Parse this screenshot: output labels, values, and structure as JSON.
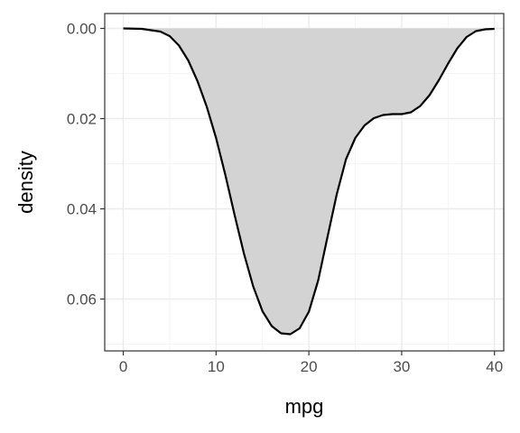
{
  "chart_data": {
    "type": "area",
    "xlabel": "mpg",
    "ylabel": "density",
    "xlim": [
      -2,
      41
    ],
    "ylim": [
      -0.0033,
      0.0715
    ],
    "y_reversed": true,
    "x_ticks": [
      0,
      10,
      20,
      30,
      40
    ],
    "x_tick_labels": [
      "0",
      "10",
      "20",
      "30",
      "40"
    ],
    "y_ticks": [
      0.0,
      0.02,
      0.04,
      0.06
    ],
    "y_tick_labels": [
      "0.00",
      "0.02",
      "0.04",
      "0.06"
    ],
    "grid": true,
    "fill_color": "#d3d3d3",
    "line_color": "#000000",
    "series": [
      {
        "x": [
          0,
          2,
          4,
          5,
          6,
          7,
          8,
          9,
          10,
          11,
          12,
          13,
          14,
          15,
          16,
          17,
          18,
          19,
          20,
          21,
          22,
          23,
          24,
          25,
          26,
          27,
          28,
          29,
          30,
          31,
          32,
          33,
          34,
          35,
          36,
          37,
          38,
          39,
          40
        ],
        "y": [
          0.0,
          0.0001,
          0.0007,
          0.0017,
          0.0038,
          0.0071,
          0.0117,
          0.0174,
          0.0243,
          0.0325,
          0.0414,
          0.0499,
          0.0572,
          0.0627,
          0.066,
          0.0676,
          0.0678,
          0.0665,
          0.0628,
          0.0559,
          0.0463,
          0.0368,
          0.029,
          0.0243,
          0.0215,
          0.0199,
          0.0192,
          0.019,
          0.019,
          0.0186,
          0.0172,
          0.0148,
          0.0115,
          0.0078,
          0.0044,
          0.0019,
          0.0006,
          0.0002,
          0.0001
        ]
      }
    ]
  }
}
